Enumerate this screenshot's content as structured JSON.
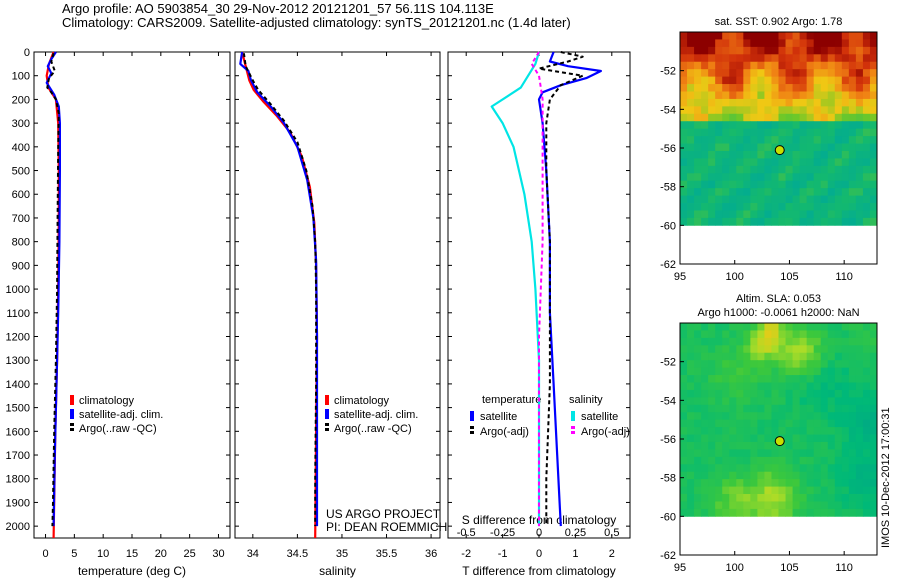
{
  "title": {
    "line1": "Argo profile: AO 5903854_30 29-Nov-2012 20121201_57 56.11S 104.113E",
    "line2": "Climatology: CARS2009. Satellite-adjusted climatology: synTS_20121201.nc (1.4d later)"
  },
  "colors": {
    "climatology": "#ff0000",
    "satellite": "#0000ff",
    "argo": "#000000",
    "satellite_s": "#00e5e5",
    "argo_s": "#ff00ff"
  },
  "depth_axis": {
    "ylim": [
      0,
      2050
    ],
    "ticks": [
      0,
      100,
      200,
      300,
      400,
      500,
      600,
      700,
      800,
      900,
      1000,
      1100,
      1200,
      1300,
      1400,
      1500,
      1600,
      1700,
      1800,
      1900,
      2000
    ]
  },
  "chart_data": [
    {
      "id": "temperature",
      "type": "line",
      "xlabel": "temperature (deg C)",
      "xlim": [
        -2,
        32
      ],
      "xticks": [
        0,
        5,
        10,
        15,
        20,
        25,
        30
      ],
      "xtick_labels": [
        "0",
        "5",
        "10",
        "15",
        "20",
        "25",
        "30"
      ],
      "legend": [
        "climatology",
        "satellite-adj. clim.",
        "Argo(..raw -QC)"
      ],
      "series": [
        {
          "name": "climatology",
          "color": "#ff0000",
          "dashed": false,
          "points": [
            [
              1.4,
              0
            ],
            [
              0.6,
              50
            ],
            [
              0.2,
              100
            ],
            [
              0.5,
              150
            ],
            [
              1.8,
              200
            ],
            [
              2.2,
              300
            ],
            [
              2.3,
              500
            ],
            [
              2.3,
              700
            ],
            [
              2.2,
              1000
            ],
            [
              2.0,
              1300
            ],
            [
              1.7,
              1600
            ],
            [
              1.4,
              2050
            ]
          ]
        },
        {
          "name": "satellite-adj. clim.",
          "color": "#0000ff",
          "dashed": false,
          "points": [
            [
              1.8,
              0
            ],
            [
              1.0,
              30
            ],
            [
              0.4,
              60
            ],
            [
              1.0,
              90
            ],
            [
              0.2,
              130
            ],
            [
              1.5,
              180
            ],
            [
              2.3,
              230
            ],
            [
              2.5,
              300
            ],
            [
              2.5,
              500
            ],
            [
              2.4,
              800
            ],
            [
              2.2,
              1100
            ],
            [
              1.9,
              1400
            ],
            [
              1.6,
              1700
            ],
            [
              1.4,
              2000
            ]
          ]
        },
        {
          "name": "Argo(..raw -QC)",
          "color": "#000000",
          "dashed": true,
          "points": [
            [
              1.4,
              5
            ],
            [
              1.0,
              40
            ],
            [
              1.6,
              80
            ],
            [
              0.6,
              110
            ],
            [
              0.3,
              150
            ],
            [
              1.0,
              170
            ],
            [
              1.8,
              200
            ],
            [
              2.3,
              260
            ],
            [
              2.2,
              400
            ],
            [
              2.1,
              700
            ],
            [
              2.0,
              1000
            ],
            [
              1.8,
              1300
            ],
            [
              1.5,
              1600
            ],
            [
              1.3,
              1900
            ],
            [
              1.2,
              2000
            ]
          ]
        }
      ]
    },
    {
      "id": "salinity",
      "type": "line",
      "xlabel": "salinity",
      "xlim": [
        33.8,
        36.1
      ],
      "xticks": [
        34,
        34.5,
        35,
        35.5,
        36
      ],
      "xtick_labels": [
        "34",
        "34.5",
        "35",
        "35.5",
        "36"
      ],
      "legend": [
        "climatology",
        "satellite-adj. clim.",
        "Argo(..raw -QC)"
      ],
      "series": [
        {
          "name": "climatology",
          "color": "#ff0000",
          "dashed": false,
          "points": [
            [
              33.88,
              0
            ],
            [
              33.92,
              60
            ],
            [
              33.96,
              120
            ],
            [
              34.01,
              160
            ],
            [
              34.12,
              210
            ],
            [
              34.27,
              270
            ],
            [
              34.42,
              340
            ],
            [
              34.55,
              440
            ],
            [
              34.64,
              570
            ],
            [
              34.69,
              720
            ],
            [
              34.71,
              900
            ],
            [
              34.72,
              1200
            ],
            [
              34.71,
              1600
            ],
            [
              34.7,
              2050
            ]
          ]
        },
        {
          "name": "satellite-adj. clim.",
          "color": "#0000ff",
          "dashed": false,
          "points": [
            [
              33.88,
              0
            ],
            [
              33.86,
              50
            ],
            [
              33.95,
              80
            ],
            [
              33.98,
              120
            ],
            [
              34.05,
              170
            ],
            [
              34.2,
              230
            ],
            [
              34.35,
              300
            ],
            [
              34.5,
              400
            ],
            [
              34.61,
              540
            ],
            [
              34.68,
              700
            ],
            [
              34.71,
              880
            ],
            [
              34.72,
              1200
            ],
            [
              34.72,
              1600
            ],
            [
              34.72,
              2000
            ]
          ]
        },
        {
          "name": "Argo(..raw -QC)",
          "color": "#000000",
          "dashed": true,
          "points": [
            [
              33.9,
              5
            ],
            [
              33.92,
              60
            ],
            [
              34.0,
              120
            ],
            [
              34.06,
              160
            ],
            [
              34.2,
              220
            ],
            [
              34.35,
              290
            ],
            [
              34.5,
              380
            ],
            [
              34.6,
              500
            ],
            [
              34.67,
              650
            ],
            [
              34.7,
              800
            ],
            [
              34.71,
              1000
            ],
            [
              34.71,
              1400
            ],
            [
              34.7,
              1800
            ],
            [
              34.7,
              2000
            ]
          ]
        }
      ]
    },
    {
      "id": "difference",
      "type": "line",
      "xlabel": "T difference from climatology",
      "xlabel2": "S difference from climatology",
      "xlim": [
        -2.5,
        2.5
      ],
      "xticks": [
        -2,
        -1,
        0,
        1,
        2
      ],
      "xtick_labels": [
        "-2",
        "-1",
        "0",
        "1",
        "2"
      ],
      "xticks_s": [
        -0.5,
        -0.25,
        0,
        0.25,
        0.5
      ],
      "xtick_labels_s": [
        "-0.5",
        "-0.25",
        "0",
        "0.25",
        "0.5"
      ],
      "legend_temperature_title": "temperature",
      "legend_salinity_title": "salinity",
      "legend": [
        "satellite",
        "Argo(-adj)",
        "satellite",
        "Argo(-adj)"
      ],
      "series": [
        {
          "name": "T satellite",
          "color": "#0000ff",
          "dashed": false,
          "points": [
            [
              0.4,
              0
            ],
            [
              0.3,
              40
            ],
            [
              0.8,
              60
            ],
            [
              1.7,
              80
            ],
            [
              1.3,
              110
            ],
            [
              0.6,
              140
            ],
            [
              0.1,
              170
            ],
            [
              0.0,
              200
            ],
            [
              0.1,
              300
            ],
            [
              0.2,
              500
            ],
            [
              0.3,
              800
            ],
            [
              0.3,
              1100
            ],
            [
              0.4,
              1400
            ],
            [
              0.5,
              1700
            ],
            [
              0.6,
              2000
            ]
          ]
        },
        {
          "name": "T Argo(-adj)",
          "color": "#000000",
          "dashed": true,
          "points": [
            [
              0.6,
              0
            ],
            [
              1.2,
              20
            ],
            [
              0.8,
              40
            ],
            [
              0.0,
              70
            ],
            [
              1.2,
              100
            ],
            [
              0.6,
              140
            ],
            [
              0.3,
              200
            ],
            [
              0.2,
              300
            ],
            [
              0.2,
              500
            ],
            [
              0.3,
              800
            ],
            [
              0.3,
              1100
            ],
            [
              0.3,
              1400
            ],
            [
              0.2,
              1800
            ],
            [
              0.2,
              2000
            ]
          ]
        },
        {
          "name": "S satellite",
          "color": "#00e5e5",
          "dashed": false,
          "points": [
            [
              0.0,
              0
            ],
            [
              -0.1,
              50
            ],
            [
              -0.5,
              150
            ],
            [
              -1.3,
              230
            ],
            [
              -1.0,
              300
            ],
            [
              -0.7,
              400
            ],
            [
              -0.4,
              600
            ],
            [
              -0.2,
              800
            ],
            [
              -0.1,
              1000
            ],
            [
              0.0,
              1300
            ],
            [
              0.0,
              2000
            ]
          ]
        },
        {
          "name": "S Argo(-adj)",
          "color": "#ff00ff",
          "dashed": true,
          "points": [
            [
              0.0,
              0
            ],
            [
              -0.2,
              50
            ],
            [
              0.0,
              100
            ],
            [
              0.1,
              200
            ],
            [
              0.1,
              300
            ],
            [
              0.1,
              500
            ],
            [
              0.1,
              800
            ],
            [
              0.0,
              1200
            ],
            [
              0.0,
              2000
            ]
          ]
        }
      ]
    },
    {
      "id": "sst_map",
      "type": "heatmap",
      "title": "sat. SST: 0.902 Argo: 1.78",
      "xlim": [
        95,
        113
      ],
      "ylim": [
        -62,
        -50
      ],
      "data_bottom": -60,
      "xticks": [
        95,
        100,
        105,
        110
      ],
      "yticks": [
        -52,
        -54,
        -56,
        -58,
        -60,
        -62
      ],
      "marker": [
        104.113,
        -56.11
      ]
    },
    {
      "id": "sla_map",
      "type": "heatmap",
      "title": "Altim. SLA: 0.053",
      "title2": "Argo h1000: -0.0061 h2000: NaN",
      "xlim": [
        95,
        113
      ],
      "ylim": [
        -62,
        -50
      ],
      "data_bottom": -60,
      "xticks": [
        95,
        100,
        105,
        110
      ],
      "yticks": [
        -52,
        -54,
        -56,
        -58,
        -60,
        -62
      ],
      "marker": [
        104.113,
        -56.11
      ]
    }
  ],
  "annotations": {
    "project": "US ARGO PROJECT",
    "pi": "PI: DEAN ROEMMICH",
    "footer": "IMOS 10-Dec-2012 17:00:31"
  }
}
